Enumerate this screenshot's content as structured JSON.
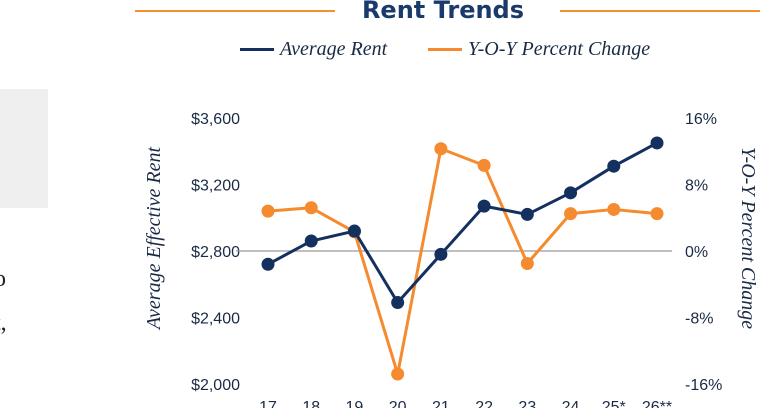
{
  "left_fragment": {
    "lines": [
      "o",
      "t,"
    ]
  },
  "chart_data": {
    "type": "line",
    "title": "Rent Trends",
    "categories": [
      "17",
      "18",
      "19",
      "20",
      "21",
      "22",
      "23",
      "24",
      "25*",
      "26**"
    ],
    "ylabel": "Average Effective Rent",
    "y2label": "Y-O-Y Percent Change",
    "ylim": [
      2000,
      3600
    ],
    "y2lim": [
      -16,
      16
    ],
    "yticks": [
      "$3,600",
      "$3,200",
      "$2,800",
      "$2,400",
      "$2,000"
    ],
    "y2ticks": [
      "16%",
      "8%",
      "0%",
      "-8%",
      "-16%"
    ],
    "series": [
      {
        "name": "Average Rent",
        "axis": "left",
        "color": "#14305e",
        "values": [
          2720,
          2860,
          2920,
          2490,
          2780,
          3070,
          3020,
          3150,
          3310,
          3450
        ]
      },
      {
        "name": "Y-O-Y Percent Change",
        "axis": "right",
        "color": "#f58a2e",
        "values": [
          4.8,
          5.2,
          2.3,
          -14.8,
          12.3,
          10.3,
          -1.5,
          4.5,
          5.0,
          4.5
        ]
      }
    ],
    "legend": "top",
    "zero_line": true
  }
}
